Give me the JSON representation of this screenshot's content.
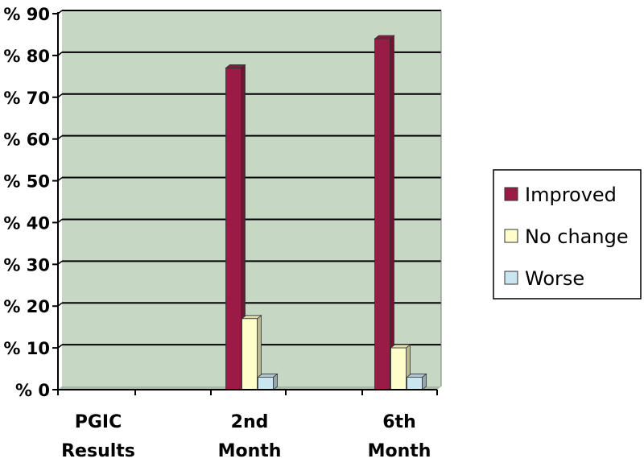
{
  "chart_data": {
    "type": "bar",
    "categories": [
      "PGIC Results",
      "2nd Month",
      "6th Month"
    ],
    "series": [
      {
        "name": "Improved",
        "values": [
          null,
          77,
          84
        ],
        "color": "#9b1b47"
      },
      {
        "name": "No change",
        "values": [
          null,
          17,
          10
        ],
        "color": "#ffffcc"
      },
      {
        "name": "Worse",
        "values": [
          null,
          3,
          3
        ],
        "color": "#c9e6f0"
      }
    ],
    "ylim": [
      0,
      90
    ],
    "yticks": [
      0,
      10,
      20,
      30,
      40,
      50,
      60,
      70,
      80,
      90
    ],
    "tick_prefix": "%",
    "legend_position": "right",
    "grid": true,
    "plot_background": "#c6d8c4"
  }
}
